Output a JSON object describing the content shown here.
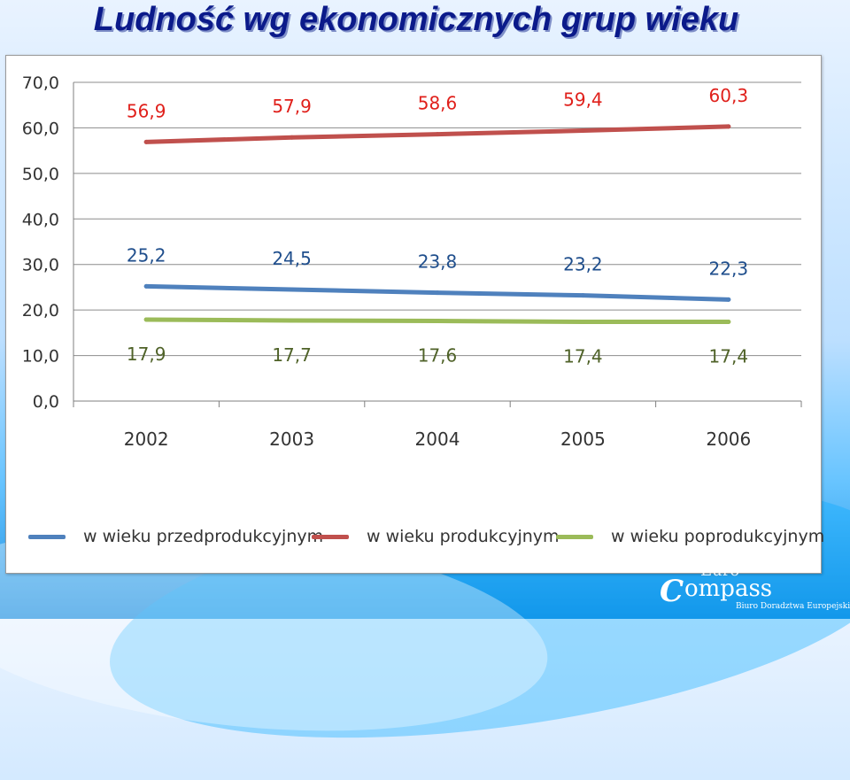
{
  "slide": {
    "title": "Ludność wg ekonomicznych grup wieku"
  },
  "logo": {
    "top_word": "Euro",
    "mark": "C",
    "name": "ompass",
    "subtitle": "Biuro Doradztwa Europejskiego"
  },
  "chart_data": {
    "type": "line",
    "title": "",
    "xlabel": "",
    "ylabel": "",
    "categories": [
      "2002",
      "2003",
      "2004",
      "2005",
      "2006"
    ],
    "ylim": [
      0,
      70
    ],
    "ytick_labels": [
      "0,0",
      "10,0",
      "20,0",
      "30,0",
      "40,0",
      "50,0",
      "60,0",
      "70,0"
    ],
    "grid": true,
    "legend_position": "bottom",
    "series": [
      {
        "name": "w wieku przedprodukcyjnym",
        "color": "#4f81bd",
        "label_color": "#1f4e8c",
        "values": [
          25.2,
          24.5,
          23.8,
          23.2,
          22.3
        ],
        "labels": [
          "25,2",
          "24,5",
          "23,8",
          "23,2",
          "22,3"
        ]
      },
      {
        "name": "w wieku produkcyjnym",
        "color": "#c0504d",
        "label_color": "#e0201b",
        "values": [
          56.9,
          57.9,
          58.6,
          59.4,
          60.3
        ],
        "labels": [
          "56,9",
          "57,9",
          "58,6",
          "59,4",
          "60,3"
        ]
      },
      {
        "name": "w wieku poprodukcyjnym",
        "color": "#9bbb59",
        "label_color": "#4f6228",
        "values": [
          17.9,
          17.7,
          17.6,
          17.4,
          17.4
        ],
        "labels": [
          "17,9",
          "17,7",
          "17,6",
          "17,4",
          "17,4"
        ]
      }
    ]
  }
}
